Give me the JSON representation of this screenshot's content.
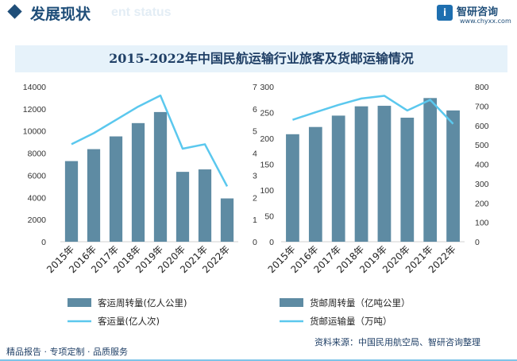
{
  "header": {
    "title": "发展现状",
    "subtitle": "ent status"
  },
  "logo": {
    "name": "智研咨询",
    "url": "www.chyxx.com",
    "mark": "i"
  },
  "colors": {
    "bar": "#5e8ba3",
    "line": "#5bc8ee",
    "accent": "#1f4e79"
  },
  "chart_title": "2015-2022年中国民航运输行业旅客及货邮运输情况",
  "chart_data": [
    {
      "type": "bar",
      "categories": [
        "2015年",
        "2016年",
        "2017年",
        "2018年",
        "2019年",
        "2020年",
        "2021年",
        "2022年"
      ],
      "series": [
        {
          "name": "客运周转量(亿人公里)",
          "type": "bar",
          "axis": "left",
          "values": [
            7280,
            8360,
            9510,
            10710,
            11710,
            6310,
            6530,
            3910
          ]
        },
        {
          "name": "客运量(亿人次)",
          "type": "line",
          "axis": "right",
          "values": [
            4.4,
            4.9,
            5.5,
            6.1,
            6.6,
            4.2,
            4.4,
            2.5
          ]
        }
      ],
      "ylim_left": [
        0,
        14000
      ],
      "yticks_left": [
        "0",
        "2000",
        "4000",
        "6000",
        "8000",
        "10000",
        "12000",
        "14000"
      ],
      "ylim_right": [
        0,
        7
      ],
      "yticks_right": [
        "0",
        "1",
        "2",
        "3",
        "4",
        "5",
        "6",
        "7"
      ],
      "legend_position": "bottom"
    },
    {
      "type": "bar",
      "categories": [
        "2015年",
        "2016年",
        "2017年",
        "2018年",
        "2019年",
        "2020年",
        "2021年",
        "2022年"
      ],
      "series": [
        {
          "name": "货邮周转量（亿吨公里）",
          "type": "bar",
          "axis": "left",
          "values": [
            208,
            222,
            244,
            262,
            263,
            240,
            278,
            254
          ]
        },
        {
          "name": "货邮运输量（万吨）",
          "type": "line",
          "axis": "right",
          "values": [
            629,
            668,
            706,
            739,
            753,
            677,
            732,
            608
          ]
        }
      ],
      "ylim_left": [
        0,
        300
      ],
      "yticks_left": [
        "0",
        "50",
        "100",
        "150",
        "200",
        "250",
        "300"
      ],
      "ylim_right": [
        0,
        800
      ],
      "yticks_right": [
        "0",
        "100",
        "200",
        "300",
        "400",
        "500",
        "600",
        "700",
        "800"
      ],
      "legend_position": "bottom"
    }
  ],
  "footer": {
    "left": "精品报告 · 专项定制 · 品质服务",
    "source": "资料来源：中国民用航空局、智研咨询整理"
  }
}
